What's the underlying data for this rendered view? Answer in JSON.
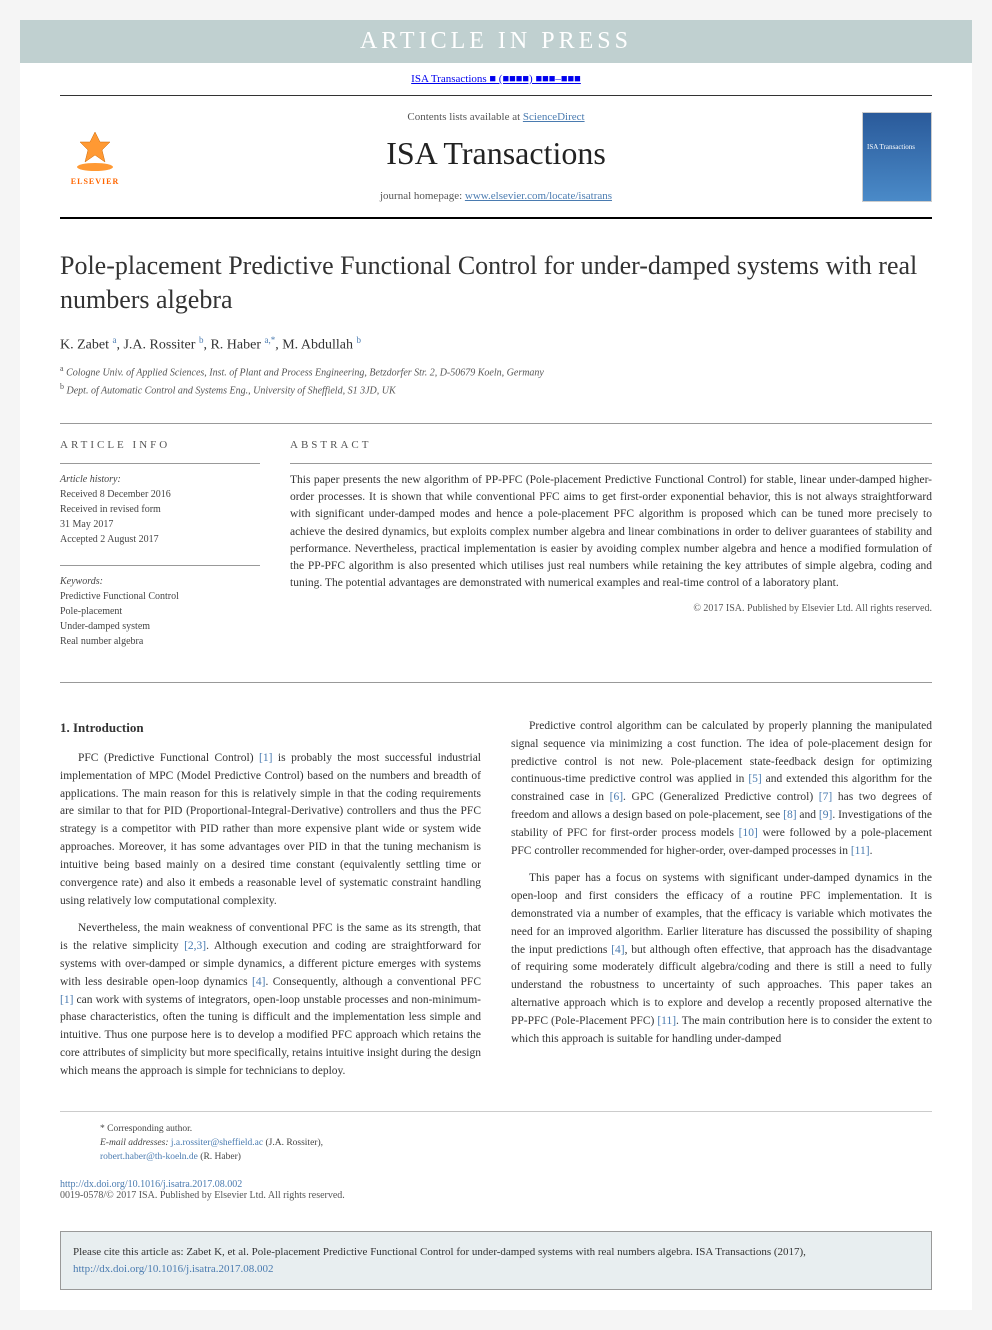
{
  "banner": "ARTICLE IN PRESS",
  "header_citation": "ISA Transactions ■ (■■■■) ■■■–■■■",
  "contents_line_prefix": "Contents lists available at ",
  "contents_line_link": "ScienceDirect",
  "journal_name": "ISA Transactions",
  "homepage_label": "journal homepage: ",
  "homepage_url": "www.elsevier.com/locate/isatrans",
  "elsevier_label": "ELSEVIER",
  "title": "Pole-placement Predictive Functional Control for under-damped systems with real numbers algebra",
  "authors_html": "K. Zabet <sup>a</sup>, J.A. Rossiter <sup>b</sup>, R. Haber <sup>a,*</sup>, M. Abdullah <sup>b</sup>",
  "affiliations": {
    "a": "Cologne Univ. of Applied Sciences, Inst. of Plant and Process Engineering, Betzdorfer Str. 2, D-50679 Koeln, Germany",
    "b": "Dept. of Automatic Control and Systems Eng., University of Sheffield, S1 3JD, UK"
  },
  "info_header": "ARTICLE INFO",
  "abstract_header": "ABSTRACT",
  "history_label": "Article history:",
  "history": [
    "Received 8 December 2016",
    "Received in revised form",
    "31 May 2017",
    "Accepted 2 August 2017"
  ],
  "keywords_label": "Keywords:",
  "keywords": [
    "Predictive Functional Control",
    "Pole-placement",
    "Under-damped system",
    "Real number algebra"
  ],
  "abstract": "This paper presents the new algorithm of PP-PFC (Pole-placement Predictive Functional Control) for stable, linear under-damped higher-order processes. It is shown that while conventional PFC aims to get first-order exponential behavior, this is not always straightforward with significant under-damped modes and hence a pole-placement PFC algorithm is proposed which can be tuned more precisely to achieve the desired dynamics, but exploits complex number algebra and linear combinations in order to deliver guarantees of stability and performance. Nevertheless, practical implementation is easier by avoiding complex number algebra and hence a modified formulation of the PP-PFC algorithm is also presented which utilises just real numbers while retaining the key attributes of simple algebra, coding and tuning. The potential advantages are demonstrated with numerical examples and real-time control of a laboratory plant.",
  "copyright": "© 2017 ISA. Published by Elsevier Ltd. All rights reserved.",
  "intro_heading": "1. Introduction",
  "intro_paragraphs": [
    "PFC (Predictive Functional Control) [1] is probably the most successful industrial implementation of MPC (Model Predictive Control) based on the numbers and breadth of applications. The main reason for this is relatively simple in that the coding requirements are similar to that for PID (Proportional-Integral-Derivative) controllers and thus the PFC strategy is a competitor with PID rather than more expensive plant wide or system wide approaches. Moreover, it has some advantages over PID in that the tuning mechanism is intuitive being based mainly on a desired time constant (equivalently settling time or convergence rate) and also it embeds a reasonable level of systematic constraint handling using relatively low computational complexity.",
    "Nevertheless, the main weakness of conventional PFC is the same as its strength, that is the relative simplicity [2,3]. Although execution and coding are straightforward for systems with over-damped or simple dynamics, a different picture emerges with systems with less desirable open-loop dynamics [4]. Consequently, although a conventional PFC [1] can work with systems of integrators, open-loop unstable processes and non-minimum-phase characteristics, often the tuning is difficult and the implementation less simple and intuitive. Thus one purpose here is to develop a modified PFC approach which retains the core attributes of simplicity but more specifically, retains intuitive insight during the design which means the approach is simple for technicians to deploy.",
    "Predictive control algorithm can be calculated by properly planning the manipulated signal sequence via minimizing a cost function. The idea of pole-placement design for predictive control is not new. Pole-placement state-feedback design for optimizing continuous-time predictive control was applied in [5] and extended this algorithm for the constrained case in [6]. GPC (Generalized Predictive control) [7] has two degrees of freedom and allows a design based on pole-placement, see [8] and [9]. Investigations of the stability of PFC for first-order process models [10] were followed by a pole-placement PFC controller recommended for higher-order, over-damped processes in [11].",
    "This paper has a focus on systems with significant under-damped dynamics in the open-loop and first considers the efficacy of a routine PFC implementation. It is demonstrated via a number of examples, that the efficacy is variable which motivates the need for an improved algorithm. Earlier literature has discussed the possibility of shaping the input predictions [4], but although often effective, that approach has the disadvantage of requiring some moderately difficult algebra/coding and there is still a need to fully understand the robustness to uncertainty of such approaches. This paper takes an alternative approach which is to explore and develop a recently proposed alternative the PP-PFC (Pole-Placement PFC) [11]. The main contribution here is to consider the extent to which this approach is suitable for handling under-damped"
  ],
  "ref_links": [
    "[1]",
    "[2,3]",
    "[4]",
    "[5]",
    "[6]",
    "[7]",
    "[8]",
    "[9]",
    "[10]",
    "[11]"
  ],
  "corresponding_label": "* Corresponding author.",
  "email_label": "E-mail addresses:",
  "emails": [
    {
      "addr": "j.a.rossiter@sheffield.ac",
      "who": "(J.A. Rossiter)"
    },
    {
      "addr": "robert.haber@th-koeln.de",
      "who": "(R. Haber)"
    }
  ],
  "doi_url": "http://dx.doi.org/10.1016/j.isatra.2017.08.002",
  "issn_line": "0019-0578/© 2017 ISA. Published by Elsevier Ltd. All rights reserved.",
  "cite_box_text": "Please cite this article as: Zabet K, et al. Pole-placement Predictive Functional Control for under-damped systems with real numbers algebra. ISA Transactions (2017), ",
  "cite_box_url": "http://dx.doi.org/10.1016/j.isatra.2017.08.002",
  "colors": {
    "link": "#4a7bb0",
    "banner_bg": "#c0d0d0",
    "elsevier_orange": "#ff6600",
    "cite_bg": "#e8eef0"
  }
}
